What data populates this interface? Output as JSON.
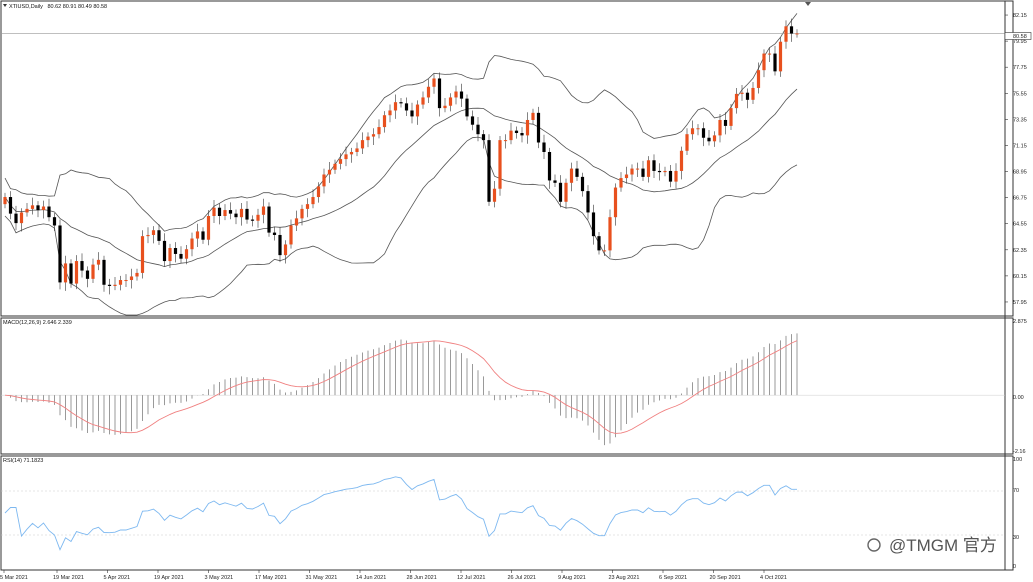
{
  "header": {
    "symbol_label": "XTIUSD,Daily",
    "ohlc_text": "80.62 80.91 80.49 80.58"
  },
  "watermark": "@TMGM 官方",
  "colors": {
    "bull": "#E8501E",
    "bear": "#000000",
    "band": "#555555",
    "signal": "#F08080",
    "rsi": "#7DB8F0",
    "grid": "#cccccc",
    "border": "#333333"
  },
  "chart_data": [
    {
      "type": "candlestick",
      "title": "XTIUSD,Daily",
      "overlay": "Bollinger Bands",
      "ylim": [
        56.85,
        83.25
      ],
      "yticks": [
        "82.15",
        "79.95",
        "77.75",
        "75.55",
        "73.35",
        "71.15",
        "68.95",
        "66.75",
        "64.55",
        "62.35",
        "60.15",
        "57.95"
      ],
      "last_price": "80.58",
      "xticks": [
        "5 Mar 2021",
        "19 Mar 2021",
        "5 Apr 2021",
        "19 Apr 2021",
        "3 May 2021",
        "17 May 2021",
        "31 May 2021",
        "14 Jun 2021",
        "28 Jun 2021",
        "12 Jul 2021",
        "26 Jul 2021",
        "9 Aug 2021",
        "23 Aug 2021",
        "6 Sep 2021",
        "20 Sep 2021",
        "4 Oct 2021"
      ],
      "close": [
        66.8,
        65.4,
        64.6,
        65.5,
        65.8,
        66.1,
        65.7,
        66.0,
        65.1,
        64.4,
        59.6,
        61.2,
        59.5,
        61.4,
        60.6,
        59.9,
        61.1,
        61.5,
        59.4,
        59.3,
        59.4,
        59.8,
        59.8,
        60.1,
        60.4,
        63.5,
        63.6,
        64.0,
        63.1,
        61.4,
        62.5,
        62.0,
        61.6,
        62.4,
        63.3,
        63.9,
        63.2,
        65.2,
        65.9,
        65.2,
        65.7,
        65.4,
        65.1,
        65.8,
        64.9,
        64.8,
        65.3,
        66.0,
        63.8,
        63.6,
        61.9,
        62.8,
        64.4,
        65.0,
        65.8,
        66.2,
        66.8,
        67.7,
        68.7,
        69.1,
        69.6,
        70.0,
        70.4,
        70.6,
        70.9,
        71.6,
        71.9,
        72.1,
        72.7,
        73.7,
        74.1,
        74.8,
        74.7,
        74.1,
        73.6,
        74.6,
        75.2,
        76.1,
        76.8,
        74.3,
        74.5,
        75.2,
        75.7,
        75.1,
        73.6,
        72.9,
        72.1,
        71.6,
        66.4,
        67.5,
        71.6,
        71.6,
        72.4,
        72.2,
        72.0,
        73.3,
        73.9,
        71.4,
        70.6,
        68.2,
        68.0,
        66.4,
        68.0,
        69.2,
        68.5,
        67.3,
        65.5,
        63.5,
        62.3,
        62.3,
        65.1,
        67.6,
        68.4,
        68.7,
        69.2,
        69.2,
        68.5,
        69.9,
        69.0,
        68.9,
        69.0,
        68.1,
        69.0,
        70.7,
        72.1,
        72.6,
        72.6,
        71.8,
        71.5,
        72.0,
        73.3,
        72.8,
        74.3,
        75.5,
        75.6,
        75.0,
        76.0,
        77.5,
        78.9,
        78.9,
        77.4,
        79.9,
        81.2,
        80.6,
        80.6
      ],
      "panels": {
        "macd": {
          "label": "MACD(12,26,9) 2.646 2.339",
          "yticks": [
            "2.875",
            "0.00",
            "-2.16"
          ],
          "ylim": [
            -2.35,
            3.05
          ],
          "main_value": 2.646,
          "signal_value": 2.339
        },
        "rsi": {
          "label": "RSI(14) 71.1823",
          "yticks": [
            "100",
            "70",
            "30",
            "0"
          ],
          "levels": [
            70,
            30
          ],
          "value": 71.1823
        }
      }
    }
  ]
}
